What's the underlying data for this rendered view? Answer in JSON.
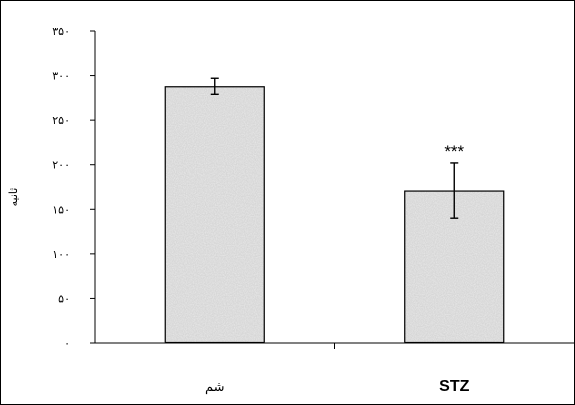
{
  "chart_data": {
    "type": "bar",
    "categories": [
      "شم",
      "STZ"
    ],
    "values": [
      288,
      171
    ],
    "errors": [
      9,
      31
    ],
    "annotations": [
      "",
      "***"
    ],
    "ylabel": "ثانیه",
    "xlabel": "",
    "title": "",
    "ylim": [
      0,
      350
    ],
    "yticks": [
      0,
      50,
      100,
      150,
      200,
      250,
      300,
      350
    ],
    "ytick_labels": [
      "۰",
      "۵۰",
      "۱۰۰",
      "۱۵۰",
      "۲۰۰",
      "۲۵۰",
      "۳۰۰",
      "۳۵۰"
    ],
    "grid": false,
    "legend": "none",
    "bar_color": "#d6d6d6",
    "bar_edge_color": "#000000"
  }
}
